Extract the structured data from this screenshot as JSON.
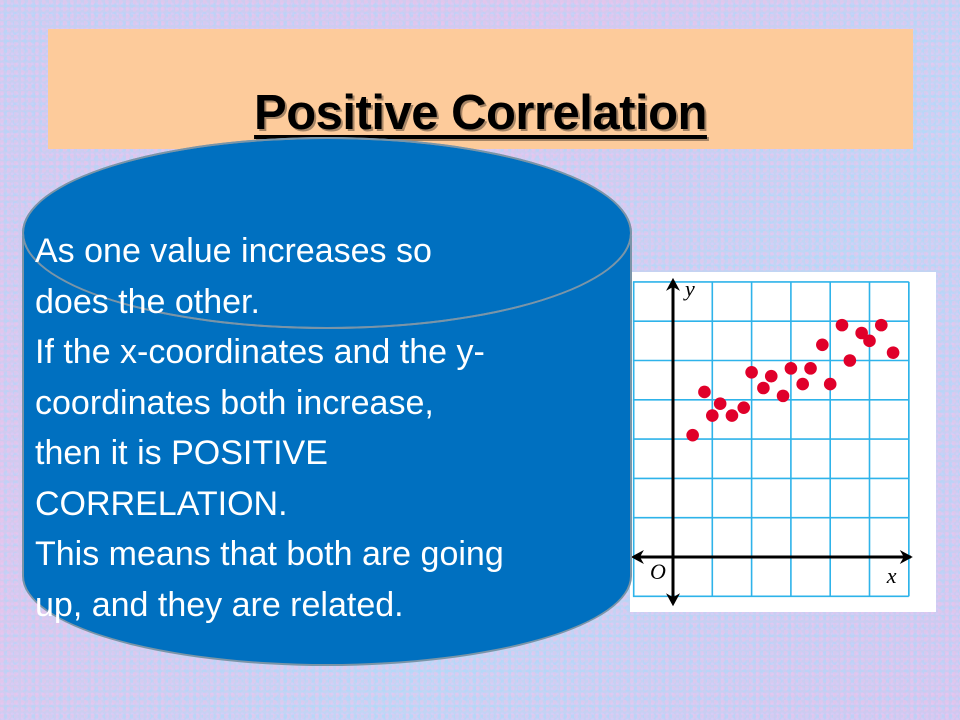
{
  "slide": {
    "title": "Positive Correlation",
    "colors": {
      "title_box": "#fdcb9b",
      "cylinder_fill": "#0070c0",
      "cylinder_stroke": "#7a95a8",
      "grid": "#2eb3ea",
      "points": "#e0002a"
    },
    "body_lines": [
      "As one value increases so",
      "does the other.",
      "If the x-coordinates and the y-",
      "coordinates both increase,",
      "then it is POSITIVE",
      "CORRELATION.",
      "This means that both are going",
      "up, and they are related."
    ]
  },
  "chart_data": {
    "type": "scatter",
    "title": "",
    "xlabel": "x",
    "ylabel": "y",
    "origin_label": "O",
    "xlim": [
      -1,
      6
    ],
    "ylim": [
      -1,
      7
    ],
    "grid": true,
    "legend": null,
    "points": [
      {
        "x": 0.5,
        "y": 3.1
      },
      {
        "x": 0.8,
        "y": 4.2
      },
      {
        "x": 1.0,
        "y": 3.6
      },
      {
        "x": 1.2,
        "y": 3.9
      },
      {
        "x": 1.5,
        "y": 3.6
      },
      {
        "x": 1.8,
        "y": 3.8
      },
      {
        "x": 2.0,
        "y": 4.7
      },
      {
        "x": 2.3,
        "y": 4.3
      },
      {
        "x": 2.5,
        "y": 4.6
      },
      {
        "x": 2.8,
        "y": 4.1
      },
      {
        "x": 3.0,
        "y": 4.8
      },
      {
        "x": 3.3,
        "y": 4.4
      },
      {
        "x": 3.5,
        "y": 4.8
      },
      {
        "x": 3.8,
        "y": 5.4
      },
      {
        "x": 4.0,
        "y": 4.4
      },
      {
        "x": 4.3,
        "y": 5.9
      },
      {
        "x": 4.5,
        "y": 5.0
      },
      {
        "x": 4.8,
        "y": 5.7
      },
      {
        "x": 5.0,
        "y": 5.5
      },
      {
        "x": 5.3,
        "y": 5.9
      },
      {
        "x": 5.6,
        "y": 5.2
      }
    ]
  }
}
